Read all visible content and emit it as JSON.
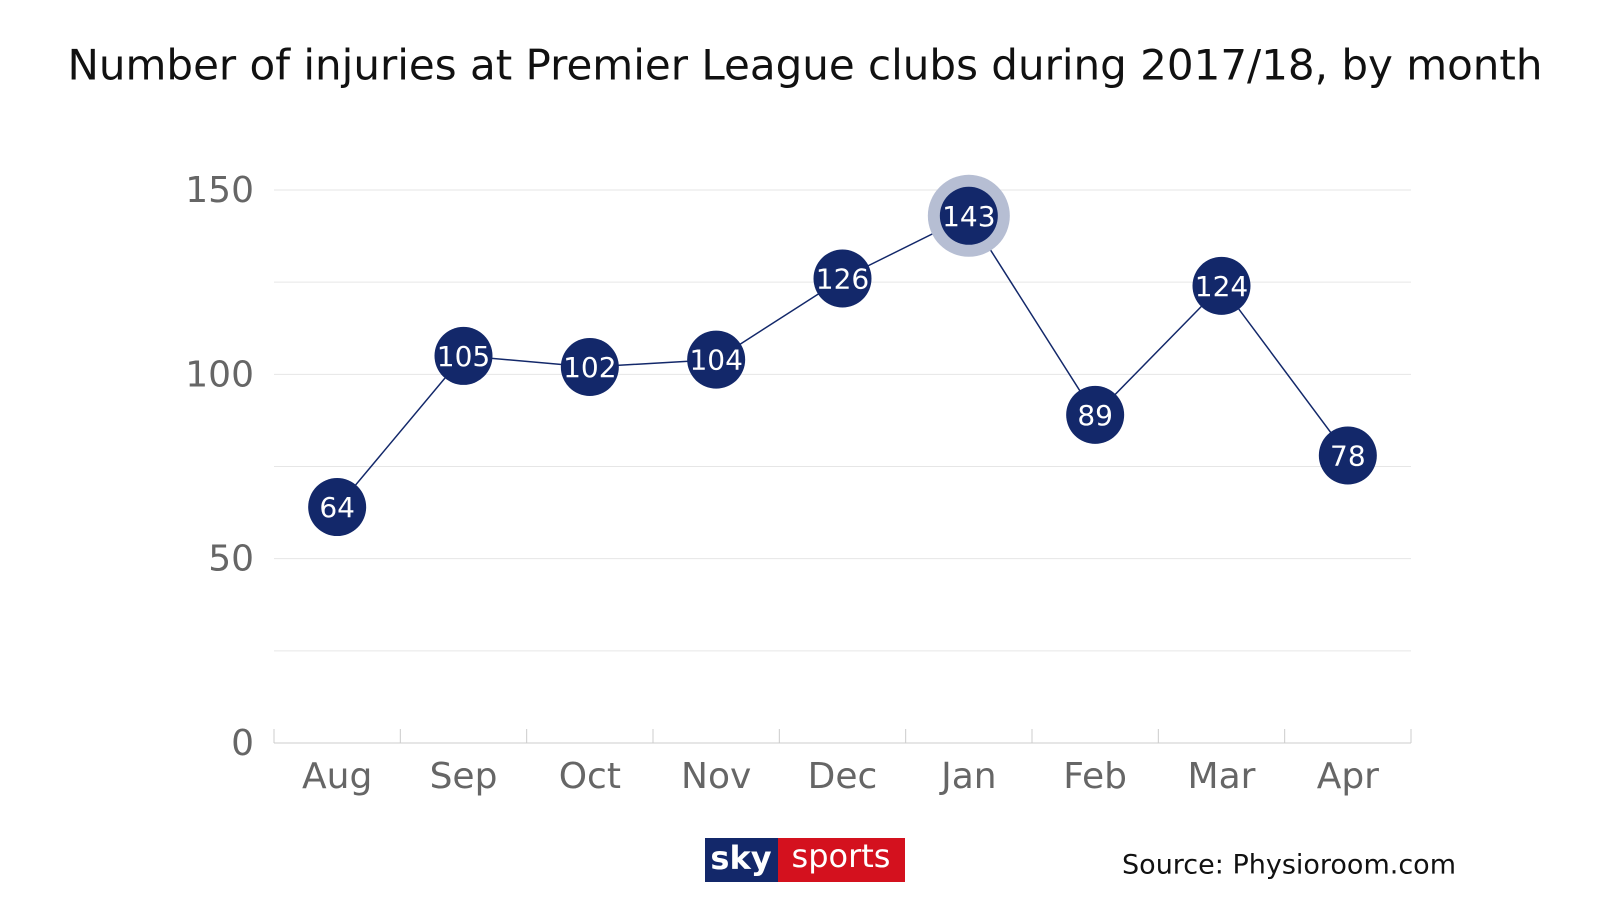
{
  "chart_data": {
    "type": "line",
    "title": "Number of injuries at Premier League clubs during 2017/18, by month",
    "categories": [
      "Aug",
      "Sep",
      "Oct",
      "Nov",
      "Dec",
      "Jan",
      "Feb",
      "Mar",
      "Apr"
    ],
    "values": [
      64,
      105,
      102,
      104,
      126,
      143,
      89,
      124,
      78
    ],
    "color": "#13286a",
    "highlight": 5,
    "ylim": [
      0,
      150
    ],
    "yticks": [
      0,
      50,
      100,
      150
    ],
    "minor_yticks": [
      25,
      75,
      125
    ],
    "grid": true,
    "source": "Source: Physioroom.com",
    "logo": {
      "left": "sky",
      "right": "sports"
    }
  }
}
